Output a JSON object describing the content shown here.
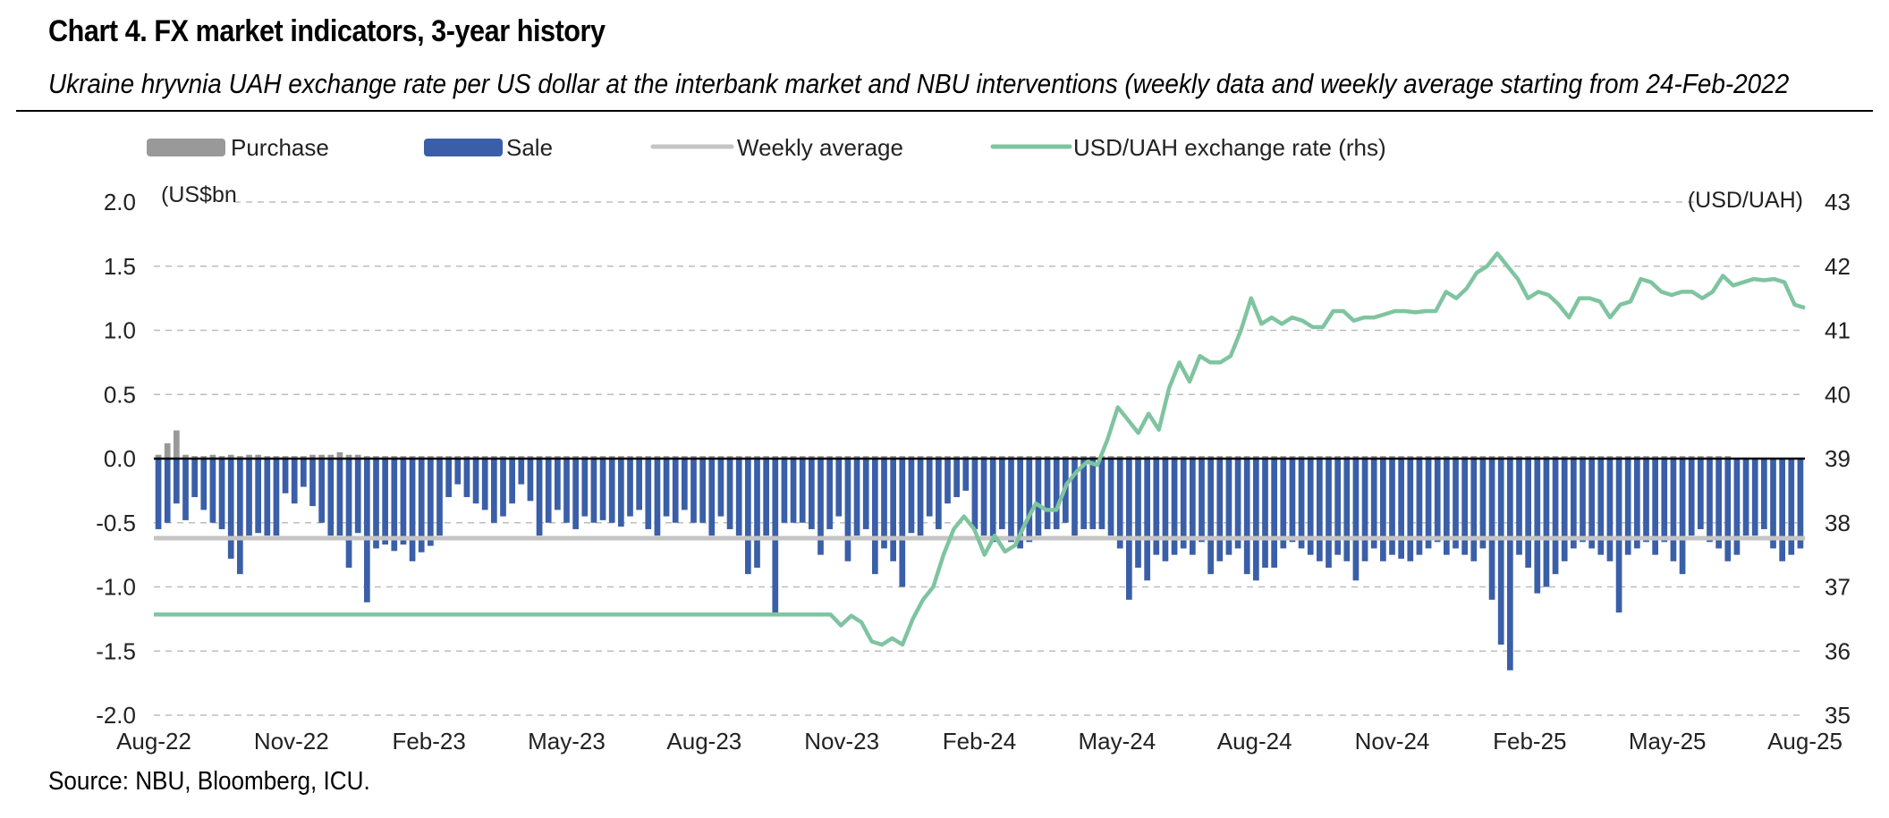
{
  "header": {
    "title": "Chart 4. FX market indicators, 3-year history",
    "subtitle": "Ukraine hryvnia UAH exchange rate per US dollar at the interbank market and NBU interventions (weekly data and weekly average starting from 24-Feb-2022"
  },
  "footer": {
    "source": "Source: NBU, Bloomberg, ICU."
  },
  "chart_data": {
    "type": "bar",
    "units_left": "(US$bn",
    "units_right": "(USD/UAH)",
    "ylim_left": [
      -2.0,
      2.0
    ],
    "yticks_left": [
      "2.0",
      "1.5",
      "1.0",
      "0.5",
      "0.0",
      "-0.5",
      "-1.0",
      "-1.5",
      "-2.0"
    ],
    "ylim_right": [
      35,
      43
    ],
    "yticks_right": [
      "43",
      "42",
      "41",
      "40",
      "39",
      "38",
      "37",
      "36",
      "35"
    ],
    "x_labels": [
      "Aug-22",
      "Nov-22",
      "Feb-23",
      "May-23",
      "Aug-23",
      "Nov-23",
      "Feb-24",
      "May-24",
      "Aug-24",
      "Nov-24",
      "Feb-25",
      "May-25",
      "Aug-25"
    ],
    "grid": true,
    "legend_position": "top",
    "colors": {
      "purchase": "#999999",
      "sale": "#3a5fa8",
      "weekly_average": "#c4c4c4",
      "fx": "#7fc4a0",
      "grid": "#bdbdbd"
    },
    "series": [
      {
        "name": "Purchase",
        "kind": "bar",
        "values": [
          0.03,
          0.12,
          0.22,
          0.03,
          0.02,
          0.02,
          0.03,
          0.02,
          0.03,
          0.02,
          0.03,
          0.03,
          0.02,
          0.02,
          0.02,
          0.02,
          0.02,
          0.03,
          0.03,
          0.03,
          0.05,
          0.03,
          0.03,
          0.02,
          0.02,
          0.02,
          0.02,
          0.02,
          0.02,
          0.02,
          0.02,
          0.02,
          0.02,
          0.02,
          0.02,
          0.02,
          0.02,
          0.02,
          0.02,
          0.02,
          0.02,
          0.02,
          0.02,
          0.02,
          0.02,
          0.02,
          0.02,
          0.02,
          0.02,
          0.02,
          0.02,
          0.02,
          0.02,
          0.02,
          0.02,
          0.02,
          0.02,
          0.02,
          0.02,
          0.02,
          0.02,
          0.02,
          0.02,
          0.02,
          0.02,
          0.02,
          0.02,
          0.02,
          0.02,
          0.02,
          0.02,
          0.02,
          0.02,
          0.02,
          0.02,
          0.02,
          0.02,
          0.02,
          0.02,
          0.02,
          0.02,
          0.02,
          0.02,
          0.02,
          0.02,
          0.02,
          0.02,
          0.02,
          0.02,
          0.02,
          0.02,
          0.02,
          0.02,
          0.02,
          0.02,
          0.02,
          0.02,
          0.02,
          0.02,
          0.02,
          0.02,
          0.02,
          0.02,
          0.02,
          0.02,
          0.02,
          0.02,
          0.02,
          0.02,
          0.02,
          0.02,
          0.02,
          0.02,
          0.02,
          0.02,
          0.02,
          0.02,
          0.02,
          0.02,
          0.02,
          0.02,
          0.02,
          0.02,
          0.02,
          0.02,
          0.02,
          0.02,
          0.02,
          0.02,
          0.02,
          0.02,
          0.02,
          0.02,
          0.02,
          0.02,
          0.02,
          0.02,
          0.02,
          0.02,
          0.02,
          0.02,
          0.02,
          0.02,
          0.02,
          0.02,
          0.02,
          0.02,
          0.02,
          0.02,
          0.02,
          0.02,
          0.02,
          0.02,
          0.02,
          0.02,
          0.02,
          0.02,
          0.02,
          0.02,
          0.02,
          0.02,
          0.02,
          0.02,
          0.02,
          0.02,
          0.02,
          0.02,
          0.02,
          0.02,
          0.02,
          0.02,
          0.02,
          0.02,
          0.02
        ]
      },
      {
        "name": "Sale",
        "kind": "bar",
        "values": [
          -0.55,
          -0.5,
          -0.35,
          -0.48,
          -0.3,
          -0.4,
          -0.5,
          -0.55,
          -0.78,
          -0.9,
          -0.6,
          -0.58,
          -0.6,
          -0.6,
          -0.27,
          -0.35,
          -0.22,
          -0.37,
          -0.5,
          -0.6,
          -0.6,
          -0.85,
          -0.58,
          -1.12,
          -0.7,
          -0.67,
          -0.72,
          -0.67,
          -0.8,
          -0.73,
          -0.68,
          -0.6,
          -0.3,
          -0.2,
          -0.3,
          -0.35,
          -0.4,
          -0.5,
          -0.45,
          -0.35,
          -0.2,
          -0.33,
          -0.6,
          -0.5,
          -0.4,
          -0.5,
          -0.55,
          -0.45,
          -0.5,
          -0.48,
          -0.5,
          -0.53,
          -0.45,
          -0.4,
          -0.55,
          -0.6,
          -0.45,
          -0.5,
          -0.4,
          -0.5,
          -0.5,
          -0.6,
          -0.45,
          -0.55,
          -0.6,
          -0.9,
          -0.85,
          -0.6,
          -1.2,
          -0.5,
          -0.5,
          -0.5,
          -0.55,
          -0.75,
          -0.55,
          -0.45,
          -0.8,
          -0.6,
          -0.55,
          -0.9,
          -0.7,
          -0.8,
          -1.0,
          -0.58,
          -0.6,
          -0.45,
          -0.55,
          -0.35,
          -0.3,
          -0.25,
          -0.55,
          -0.6,
          -0.65,
          -0.55,
          -0.65,
          -0.7,
          -0.65,
          -0.6,
          -0.55,
          -0.55,
          -0.5,
          -0.6,
          -0.55,
          -0.55,
          -0.55,
          -0.6,
          -0.7,
          -1.1,
          -0.85,
          -0.95,
          -0.75,
          -0.8,
          -0.75,
          -0.7,
          -0.75,
          -0.65,
          -0.9,
          -0.8,
          -0.75,
          -0.7,
          -0.9,
          -0.95,
          -0.85,
          -0.85,
          -0.7,
          -0.65,
          -0.7,
          -0.75,
          -0.8,
          -0.85,
          -0.75,
          -0.8,
          -0.95,
          -0.8,
          -0.7,
          -0.8,
          -0.75,
          -0.78,
          -0.8,
          -0.75,
          -0.7,
          -0.65,
          -0.75,
          -0.7,
          -0.75,
          -0.8,
          -0.7,
          -1.1,
          -1.45,
          -1.65,
          -0.75,
          -0.85,
          -1.05,
          -1.0,
          -0.9,
          -0.8,
          -0.7,
          -0.65,
          -0.7,
          -0.75,
          -0.8,
          -1.2,
          -0.75,
          -0.7,
          -0.65,
          -0.75,
          -0.65,
          -0.8,
          -0.9,
          -0.6,
          -0.55,
          -0.65,
          -0.7,
          -0.8,
          -0.75,
          -0.6,
          -0.6,
          -0.55,
          -0.7,
          -0.8,
          -0.75,
          -0.7
        ]
      },
      {
        "name": "Weekly average",
        "kind": "line",
        "axis": "left",
        "values": [
          -0.62,
          -0.62
        ]
      },
      {
        "name": "USD/UAH exchange rate (rhs)",
        "kind": "line",
        "axis": "right",
        "values": [
          36.57,
          36.57,
          36.57,
          36.57,
          36.57,
          36.57,
          36.57,
          36.57,
          36.57,
          36.57,
          36.57,
          36.57,
          36.57,
          36.57,
          36.57,
          36.57,
          36.57,
          36.57,
          36.57,
          36.57,
          36.57,
          36.57,
          36.57,
          36.57,
          36.57,
          36.57,
          36.57,
          36.57,
          36.57,
          36.57,
          36.57,
          36.57,
          36.57,
          36.57,
          36.57,
          36.57,
          36.57,
          36.57,
          36.57,
          36.57,
          36.57,
          36.57,
          36.57,
          36.57,
          36.57,
          36.57,
          36.57,
          36.57,
          36.57,
          36.57,
          36.57,
          36.57,
          36.57,
          36.57,
          36.57,
          36.57,
          36.57,
          36.57,
          36.57,
          36.57,
          36.57,
          36.57,
          36.57,
          36.57,
          36.57,
          36.57,
          36.57,
          36.4,
          36.55,
          36.45,
          36.15,
          36.1,
          36.2,
          36.1,
          36.5,
          36.8,
          37.0,
          37.5,
          37.9,
          38.1,
          37.9,
          37.5,
          37.8,
          37.55,
          37.65,
          38.0,
          38.3,
          38.2,
          38.2,
          38.6,
          38.8,
          38.95,
          38.9,
          39.3,
          39.8,
          39.6,
          39.4,
          39.7,
          39.45,
          40.1,
          40.5,
          40.2,
          40.6,
          40.5,
          40.5,
          40.6,
          41.0,
          41.5,
          41.1,
          41.2,
          41.1,
          41.2,
          41.15,
          41.05,
          41.05,
          41.3,
          41.3,
          41.15,
          41.2,
          41.2,
          41.25,
          41.3,
          41.3,
          41.28,
          41.3,
          41.3,
          41.6,
          41.5,
          41.65,
          41.9,
          42.0,
          42.2,
          42.0,
          41.8,
          41.5,
          41.6,
          41.55,
          41.4,
          41.2,
          41.5,
          41.5,
          41.45,
          41.2,
          41.4,
          41.45,
          41.8,
          41.75,
          41.6,
          41.55,
          41.6,
          41.6,
          41.5,
          41.6,
          41.85,
          41.7,
          41.75,
          41.8,
          41.78,
          41.8,
          41.75,
          41.4,
          41.35
        ]
      }
    ]
  }
}
